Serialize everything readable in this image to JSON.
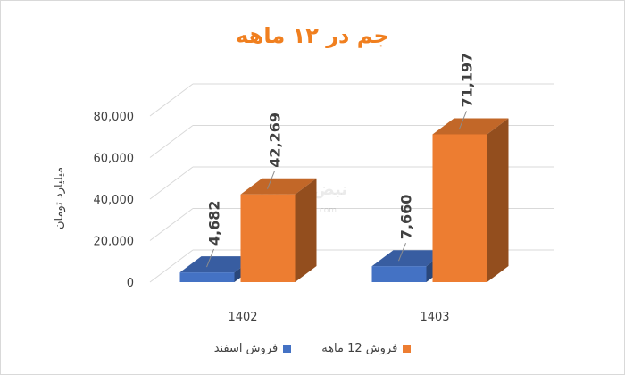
{
  "title": "جم در ۱۲ ماهه",
  "colors": {
    "title": "#f07f1f",
    "grid": "#d9d9d9",
    "axis_text": "#404040"
  },
  "watermark": {
    "brand": "نبض بورس",
    "url": "nabzebourse.com"
  },
  "chart_data": {
    "type": "bar",
    "three_d": true,
    "categories": [
      "1402",
      "1403"
    ],
    "series": [
      {
        "name": "فروش اسفند",
        "values": [
          4682,
          7660
        ],
        "labels": [
          "4,682",
          "7,660"
        ],
        "color": "#4472c4"
      },
      {
        "name": "فروش 12 ماهه",
        "values": [
          42269,
          71197
        ],
        "labels": [
          "42,269",
          "71,197"
        ],
        "color": "#ed7d31"
      }
    ],
    "ylabel": "میلیارد تومان",
    "yticks": [
      "0",
      "20,000",
      "40,000",
      "60,000",
      "80,000"
    ],
    "ytick_values": [
      0,
      20000,
      40000,
      60000,
      80000
    ],
    "ylim": [
      0,
      80000
    ],
    "grid": true,
    "legend_position": "bottom"
  }
}
